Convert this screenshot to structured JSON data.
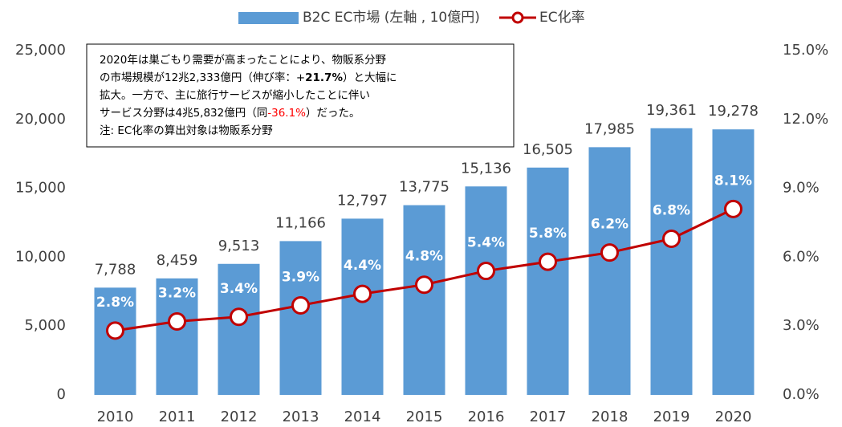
{
  "chart_data": {
    "type": "bar",
    "categories": [
      "2010",
      "2011",
      "2012",
      "2013",
      "2014",
      "2015",
      "2016",
      "2017",
      "2018",
      "2019",
      "2020"
    ],
    "series": [
      {
        "name": "B2C EC市場 (左軸 , 10億円)",
        "color": "#5b9bd5",
        "type": "bar",
        "values": [
          7788,
          8459,
          9513,
          11166,
          12797,
          13775,
          15136,
          16505,
          17985,
          19361,
          19278
        ],
        "value_labels": [
          "7,788",
          "8,459",
          "9,513",
          "11,166",
          "12,797",
          "13,775",
          "15,136",
          "16,505",
          "17,985",
          "19,361",
          "19,278"
        ]
      },
      {
        "name": "EC化率",
        "color": "#c00000",
        "type": "line",
        "axis": "y2",
        "values": [
          2.8,
          3.2,
          3.4,
          3.9,
          4.4,
          4.8,
          5.4,
          5.8,
          6.2,
          6.8,
          8.1
        ],
        "value_labels": [
          "2.8%",
          "3.2%",
          "3.4%",
          "3.9%",
          "4.4%",
          "4.8%",
          "5.4%",
          "5.8%",
          "6.2%",
          "6.8%",
          "8.1%"
        ]
      }
    ],
    "ylim": [
      0,
      25000
    ],
    "yticks": [
      0,
      {
        "value": 5000,
        "label": "5,000"
      },
      {
        "value": 10000,
        "label": "10,000"
      },
      {
        "value": 15000,
        "label": "15,000"
      },
      {
        "value": 20000,
        "label": "20,000"
      },
      {
        "value": 25000,
        "label": "25,000"
      }
    ],
    "y2lim": [
      0,
      15
    ],
    "y2ticks": [
      {
        "value": 0,
        "label": "0.0%"
      },
      {
        "value": 3,
        "label": "3.0%"
      },
      {
        "value": 6,
        "label": "6.0%"
      },
      {
        "value": 9,
        "label": "9.0%"
      },
      {
        "value": 12,
        "label": "12.0%"
      },
      {
        "value": 15,
        "label": "15.0%"
      }
    ],
    "grid": false,
    "legend": "top",
    "annotation": [
      [
        {
          "text": "2020年は巣ごもり需要が高まったことにより、物販系分野"
        }
      ],
      [
        {
          "text": "の市場規模が12兆2,333億円（伸び率：+"
        },
        {
          "text": "21.7%",
          "bold": true
        },
        {
          "text": "）と大幅に"
        }
      ],
      [
        {
          "text": "拡大。一方で、主に旅行サービスが縮小したことに伴い"
        }
      ],
      [
        {
          "text": "サービス分野は4兆5,832億円（同"
        },
        {
          "text": "-36.1%",
          "color": "#ff0000"
        },
        {
          "text": "）だった。"
        }
      ],
      [
        {
          "text": "注: EC化率の算出対象は物販系分野"
        }
      ]
    ]
  }
}
